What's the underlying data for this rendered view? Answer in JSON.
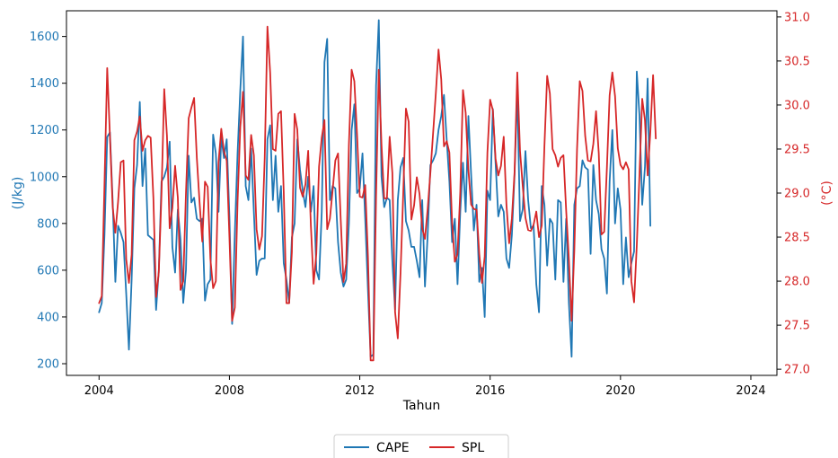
{
  "chart_data": {
    "type": "line",
    "xlabel": "Tahun",
    "x_ticks": [
      2004,
      2008,
      2012,
      2016,
      2020,
      2024
    ],
    "xlim": [
      2003.0,
      2024.8
    ],
    "left_axis": {
      "label": "(J/kg)",
      "color": "#1f77b4",
      "ylim": [
        150,
        1710
      ],
      "ticks": [
        200,
        400,
        600,
        800,
        1000,
        1200,
        1400,
        1600
      ]
    },
    "right_axis": {
      "label": "(°C)",
      "color": "#d62728",
      "ylim": [
        26.93,
        31.07
      ],
      "ticks": [
        27.0,
        27.5,
        28.0,
        28.5,
        29.0,
        29.5,
        30.0,
        30.5,
        31.0
      ]
    },
    "grid": false,
    "legend": {
      "placement": "bottom-center",
      "ncol": 2
    },
    "series": [
      {
        "name": "CAPE",
        "axis": "left",
        "color": "#1f77b4",
        "x_start": "2004-01",
        "frequency": "monthly",
        "values": [
          420,
          460,
          750,
          1170,
          1190,
          900,
          550,
          790,
          760,
          720,
          500,
          260,
          560,
          950,
          1050,
          1320,
          960,
          1120,
          750,
          740,
          730,
          430,
          600,
          980,
          1000,
          1040,
          1150,
          700,
          590,
          860,
          730,
          460,
          600,
          1090,
          890,
          910,
          820,
          810,
          820,
          470,
          540,
          560,
          1180,
          1100,
          850,
          1170,
          1080,
          1160,
          830,
          370,
          760,
          1100,
          1370,
          1600,
          960,
          900,
          1120,
          850,
          580,
          640,
          650,
          650,
          1160,
          1220,
          900,
          1090,
          850,
          960,
          630,
          560,
          460,
          740,
          800,
          1160,
          1030,
          940,
          870,
          1000,
          850,
          960,
          600,
          560,
          850,
          1490,
          1590,
          900,
          960,
          950,
          720,
          590,
          530,
          560,
          800,
          1200,
          1310,
          930,
          950,
          1100,
          820,
          520,
          230,
          240,
          1390,
          1670,
          1000,
          870,
          910,
          900,
          640,
          430,
          900,
          1040,
          1080,
          810,
          770,
          700,
          700,
          640,
          570,
          900,
          530,
          750,
          1050,
          1070,
          1100,
          1200,
          1260,
          1350,
          1160,
          980,
          720,
          820,
          540,
          850,
          1060,
          850,
          1260,
          1010,
          770,
          880,
          550,
          610,
          400,
          940,
          900,
          1290,
          1060,
          830,
          880,
          850,
          650,
          610,
          750,
          1010,
          1370,
          810,
          860,
          1110,
          900,
          780,
          790,
          540,
          420,
          960,
          880,
          620,
          820,
          800,
          560,
          900,
          890,
          550,
          820,
          460,
          230,
          880,
          950,
          960,
          1070,
          1040,
          1030,
          670,
          1050,
          900,
          840,
          690,
          650,
          500,
          980,
          1200,
          800,
          950,
          860,
          540,
          740,
          570,
          630,
          680,
          1450,
          1260,
          880,
          1040,
          1420,
          790
        ]
      },
      {
        "name": "SPL",
        "axis": "right",
        "color": "#d62728",
        "x_start": "2004-01",
        "frequency": "monthly",
        "values": [
          27.75,
          27.83,
          29.1,
          30.42,
          29.65,
          28.85,
          28.55,
          28.9,
          29.35,
          29.37,
          28.25,
          27.98,
          28.3,
          29.6,
          29.7,
          29.87,
          29.48,
          29.6,
          29.65,
          29.63,
          28.95,
          27.82,
          28.1,
          29.0,
          30.18,
          29.65,
          28.6,
          28.83,
          29.31,
          28.95,
          27.9,
          28.0,
          29.0,
          29.85,
          29.97,
          30.08,
          29.4,
          28.9,
          28.45,
          29.13,
          29.07,
          28.25,
          27.92,
          28.0,
          29.35,
          29.73,
          29.47,
          29.37,
          28.5,
          27.55,
          27.7,
          28.9,
          29.75,
          30.15,
          29.2,
          29.15,
          29.66,
          29.43,
          28.59,
          28.36,
          28.51,
          29.4,
          30.89,
          30.37,
          29.5,
          29.48,
          29.9,
          29.93,
          29.01,
          27.75,
          27.75,
          28.33,
          29.9,
          29.72,
          29.06,
          28.96,
          29.1,
          29.48,
          28.63,
          27.97,
          28.31,
          29.3,
          29.63,
          29.83,
          28.59,
          28.71,
          29.03,
          29.37,
          29.45,
          28.69,
          27.99,
          28.2,
          29.55,
          30.4,
          30.27,
          29.66,
          28.96,
          28.95,
          29.09,
          28.29,
          27.1,
          27.1,
          28.96,
          30.4,
          29.55,
          28.94,
          28.94,
          29.64,
          29.23,
          27.65,
          27.35,
          28.09,
          28.99,
          29.96,
          29.81,
          28.7,
          28.86,
          29.18,
          28.99,
          28.6,
          28.48,
          28.82,
          29.23,
          29.68,
          30.13,
          30.63,
          30.29,
          29.53,
          29.59,
          29.46,
          28.66,
          28.22,
          28.31,
          29.01,
          30.17,
          29.91,
          29.26,
          28.87,
          28.82,
          28.81,
          28.31,
          27.98,
          28.28,
          29.46,
          30.06,
          29.94,
          29.39,
          29.2,
          29.31,
          29.64,
          28.87,
          28.43,
          28.71,
          29.24,
          30.37,
          29.48,
          29.08,
          28.72,
          28.58,
          28.57,
          28.64,
          28.79,
          28.5,
          28.63,
          29.54,
          30.33,
          30.13,
          29.5,
          29.43,
          29.3,
          29.4,
          29.43,
          28.8,
          28.25,
          27.55,
          28.35,
          29.5,
          30.27,
          30.16,
          29.65,
          29.37,
          29.36,
          29.56,
          29.93,
          29.45,
          28.53,
          28.56,
          29.29,
          30.11,
          30.37,
          30.1,
          29.51,
          29.32,
          29.27,
          29.35,
          29.27,
          28.0,
          27.76,
          28.41,
          29.22,
          30.07,
          29.83,
          29.2,
          29.7,
          30.34,
          29.62
        ]
      }
    ]
  }
}
